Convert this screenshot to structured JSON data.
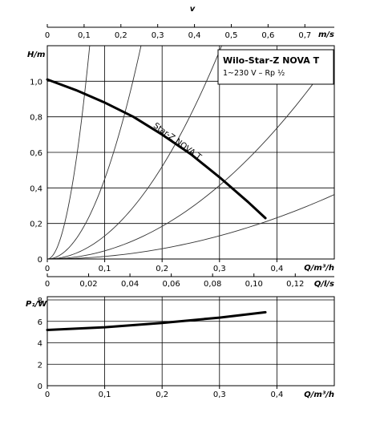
{
  "legend_box": {
    "title": "Wilo-Star-Z NOVA T",
    "subtitle": "1~230 V – Rp ½"
  },
  "chart_data": [
    {
      "type": "line",
      "name": "pump-curve",
      "top_axis": {
        "label": "m/s",
        "symbol": "v",
        "ticks": [
          "0",
          "0,1",
          "0,2",
          "0,3",
          "0,4",
          "0,5",
          "0,6",
          "0,7"
        ],
        "range": [
          0,
          0.78
        ]
      },
      "xlabel": "Q/m³/h",
      "xticks": [
        "0",
        "0,1",
        "0,2",
        "0,3",
        "0,4"
      ],
      "xlim": [
        0,
        0.5
      ],
      "ylabel": "H/m",
      "yticks": [
        "0",
        "0,2",
        "0,4",
        "0,6",
        "0,8",
        "1,0"
      ],
      "ylim": [
        0,
        1.2
      ],
      "bottom_axis2": {
        "label": "Q/l/s",
        "ticks": [
          "0",
          "0,02",
          "0,04",
          "0,06",
          "0,08",
          "0,10",
          "0,12"
        ],
        "range": [
          0,
          0.1389
        ]
      },
      "series": [
        {
          "name": "Star-Z NOVA T",
          "x": [
            0,
            0.05,
            0.1,
            0.15,
            0.2,
            0.25,
            0.3,
            0.35,
            0.38
          ],
          "y": [
            1.01,
            0.95,
            0.88,
            0.8,
            0.7,
            0.59,
            0.46,
            0.32,
            0.23
          ]
        }
      ],
      "system_curves_k": [
        220,
        45,
        13,
        4.6,
        1.45
      ],
      "grid": true
    },
    {
      "type": "line",
      "name": "power-curve",
      "xlabel": "Q/m³/h",
      "xticks": [
        "0",
        "0,1",
        "0,2",
        "0,3",
        "0,4"
      ],
      "xlim": [
        0,
        0.5
      ],
      "ylabel": "P₁/W",
      "yticks": [
        "0",
        "2",
        "4",
        "6",
        "8"
      ],
      "ylim": [
        0,
        8.3
      ],
      "series": [
        {
          "x": [
            0,
            0.1,
            0.2,
            0.3,
            0.38
          ],
          "y": [
            5.2,
            5.45,
            5.85,
            6.35,
            6.85
          ]
        }
      ],
      "grid": true
    }
  ]
}
